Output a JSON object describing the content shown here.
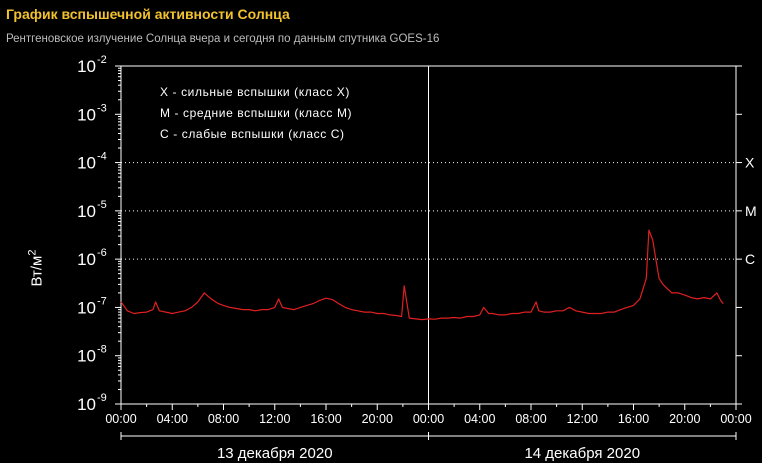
{
  "header": {
    "title": "График вспышечной активности Солнца",
    "subtitle": "Рентгеновское излучение Солнца вчера и сегодня по данным спутника GOES-16"
  },
  "chart_data": {
    "type": "line",
    "scale": "log",
    "ylim_exp": [
      -9,
      -2
    ],
    "ylabel": "Вт/м",
    "ylabel_exp": "2",
    "y_ticks": [
      {
        "base": "10",
        "exp": "-2"
      },
      {
        "base": "10",
        "exp": "-3"
      },
      {
        "base": "10",
        "exp": "-4"
      },
      {
        "base": "10",
        "exp": "-5"
      },
      {
        "base": "10",
        "exp": "-6"
      },
      {
        "base": "10",
        "exp": "-7"
      },
      {
        "base": "10",
        "exp": "-8"
      },
      {
        "base": "10",
        "exp": "-9"
      }
    ],
    "x_tick_labels": [
      "00:00",
      "04:00",
      "08:00",
      "12:00",
      "16:00",
      "20:00",
      "00:00",
      "04:00",
      "08:00",
      "12:00",
      "16:00",
      "20:00",
      "00:00"
    ],
    "x_range_hours": [
      0,
      48
    ],
    "days": [
      "13 декабря 2020",
      "14 декабря 2020"
    ],
    "class_levels": [
      {
        "label": "X",
        "exp": -4
      },
      {
        "label": "M",
        "exp": -5
      },
      {
        "label": "C",
        "exp": -6
      }
    ],
    "legend": [
      "X - сильные вспышки (класс X)",
      "M - средние вспышки (класс M)",
      "C - слабые вспышки (класс C)"
    ],
    "grid": false,
    "colors": {
      "line": "#e02020",
      "axis": "#ffffff",
      "title": "#f2c12e",
      "subtitle": "#bdbdbd"
    },
    "series": [
      {
        "x_hours": [
          0,
          0.5,
          1,
          1.5,
          2,
          2.5,
          2.7,
          3,
          3.5,
          4,
          4.5,
          5,
          5.5,
          6,
          6.5,
          6.8,
          7.2,
          7.6,
          8,
          8.5,
          9,
          9.5,
          10,
          10.5,
          11,
          11.5,
          12,
          12.3,
          12.6,
          13,
          13.5,
          14,
          14.5,
          15,
          15.5,
          16,
          16.5,
          17,
          17.5,
          18,
          18.5,
          19,
          19.5,
          20,
          20.5,
          21,
          21.5,
          21.9,
          22.1,
          22.5,
          23,
          23.5,
          24,
          24.5,
          25,
          25.5,
          26,
          26.5,
          27,
          27.5,
          28,
          28.3,
          28.7,
          29,
          29.5,
          30,
          30.5,
          31,
          31.5,
          32,
          32.4,
          32.6,
          33,
          33.5,
          34,
          34.5,
          35,
          35.5,
          36,
          36.5,
          37,
          37.5,
          38,
          38.5,
          39,
          39.5,
          40,
          40.5,
          41,
          41.2,
          41.5,
          41.8,
          42,
          42.3,
          42.6,
          43,
          43.5,
          44,
          44.5,
          45,
          45.5,
          46,
          46.5,
          46.8,
          47
        ],
        "y": [
          1.3e-07,
          8.5e-08,
          7.5e-08,
          7.8e-08,
          8e-08,
          9e-08,
          1.3e-07,
          8.5e-08,
          8e-08,
          7.5e-08,
          8e-08,
          8.5e-08,
          1e-07,
          1.3e-07,
          2e-07,
          1.7e-07,
          1.4e-07,
          1.2e-07,
          1.1e-07,
          1e-07,
          9.5e-08,
          9e-08,
          9e-08,
          8.5e-08,
          9e-08,
          9e-08,
          1e-07,
          1.5e-07,
          1e-07,
          9.5e-08,
          9e-08,
          1e-07,
          1.1e-07,
          1.2e-07,
          1.4e-07,
          1.55e-07,
          1.45e-07,
          1.2e-07,
          1e-07,
          9e-08,
          8.5e-08,
          8e-08,
          8e-08,
          7.5e-08,
          7.5e-08,
          7e-08,
          6.8e-08,
          6.5e-08,
          2.8e-07,
          6e-08,
          5.8e-08,
          5.6e-08,
          5.8e-08,
          5.7e-08,
          6e-08,
          6e-08,
          6.2e-08,
          6e-08,
          6.5e-08,
          6.5e-08,
          7e-08,
          1e-07,
          7.5e-08,
          7.5e-08,
          7e-08,
          7e-08,
          7.5e-08,
          7.5e-08,
          8e-08,
          8e-08,
          1.3e-07,
          8.5e-08,
          8e-08,
          8e-08,
          8.5e-08,
          8.5e-08,
          1e-07,
          8.5e-08,
          8e-08,
          7.5e-08,
          7.5e-08,
          7.5e-08,
          8e-08,
          8e-08,
          9e-08,
          1e-07,
          1.1e-07,
          1.5e-07,
          4e-07,
          4e-06,
          2.5e-06,
          8e-07,
          4e-07,
          3e-07,
          2.5e-07,
          2e-07,
          2e-07,
          1.8e-07,
          1.6e-07,
          1.5e-07,
          1.6e-07,
          1.5e-07,
          2e-07,
          1.4e-07,
          1.2e-07
        ]
      }
    ]
  }
}
